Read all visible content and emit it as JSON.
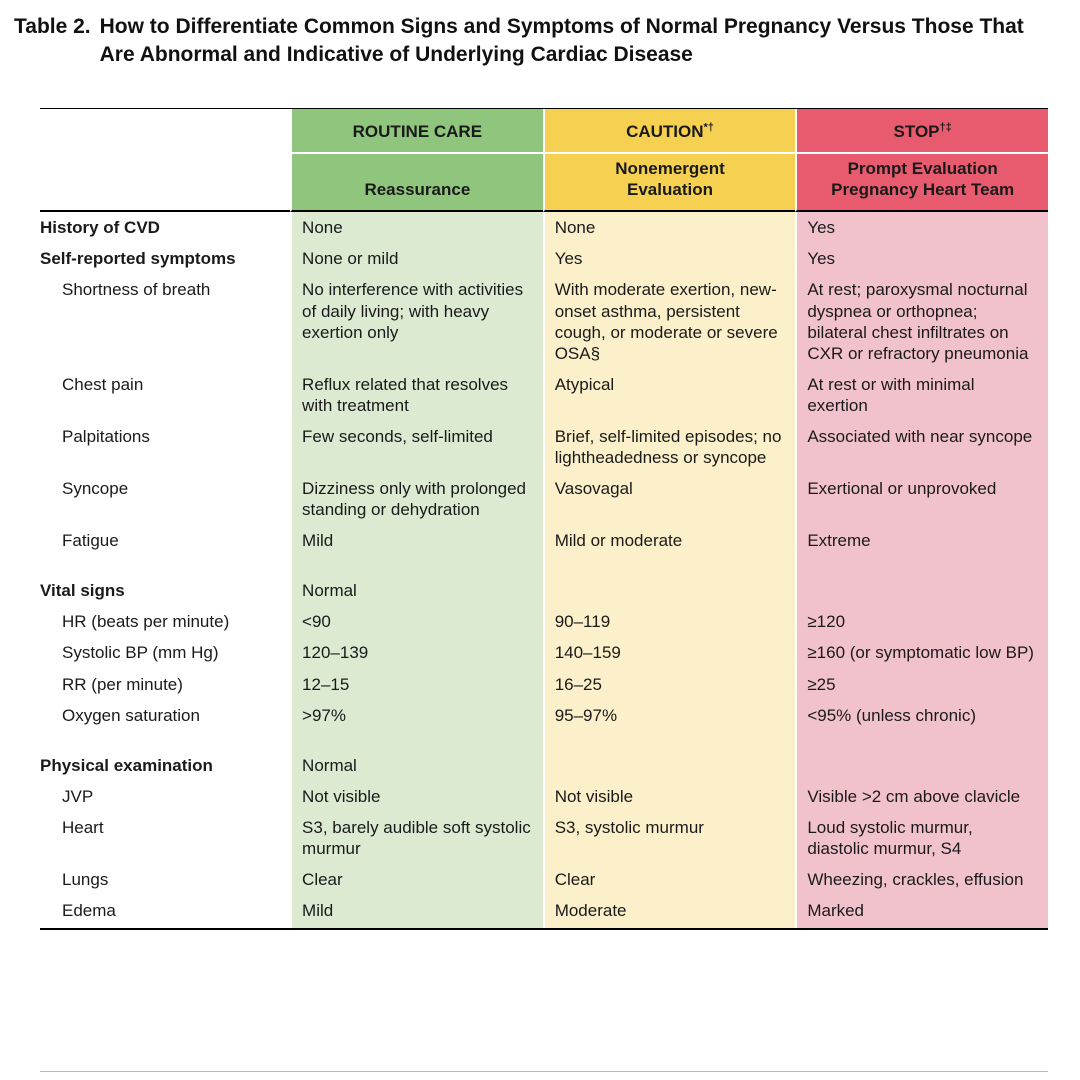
{
  "title": {
    "label": "Table 2.",
    "text": "How to Differentiate Common Signs and Symptoms of Normal Pregnancy Versus Those That Are Abnormal and Indicative of Underlying Cardiac Disease"
  },
  "table": {
    "columns": [
      {
        "header": "ROUTINE CARE",
        "header_sup": "",
        "subheader": "Reassurance",
        "header_color": "#8fc57d",
        "body_color": "#dcead2"
      },
      {
        "header": "CAUTION",
        "header_sup": "*†",
        "subheader": "Nonemergent\nEvaluation",
        "header_color": "#f6d051",
        "body_color": "#fbf0c9"
      },
      {
        "header": "STOP",
        "header_sup": "†‡",
        "subheader": "Prompt Evaluation\nPregnancy Heart Team",
        "header_color": "#e85a6e",
        "body_color": "#f2c2cc"
      }
    ],
    "rows": [
      {
        "label": "History of CVD",
        "bold": true,
        "cells": [
          "None",
          "None",
          "Yes"
        ]
      },
      {
        "label": "Self-reported symptoms",
        "bold": true,
        "cells": [
          "None or mild",
          "Yes",
          "Yes"
        ]
      },
      {
        "label": "Shortness of breath",
        "indent": true,
        "cells": [
          "No interference with activities of daily living; with heavy exertion only",
          "With moderate exertion, new-onset asthma, persistent cough, or moderate or severe OSA§",
          "At rest; paroxysmal nocturnal dyspnea or orthopnea; bilateral chest infiltrates on CXR or refractory pneumonia"
        ]
      },
      {
        "label": "Chest pain",
        "indent": true,
        "cells": [
          "Reflux related that resolves with treatment",
          "Atypical",
          "At rest or with minimal exertion"
        ]
      },
      {
        "label": "Palpitations",
        "indent": true,
        "cells": [
          "Few seconds, self-limited",
          "Brief, self-limited episodes; no lightheadedness or syncope",
          "Associated with near syncope"
        ]
      },
      {
        "label": "Syncope",
        "indent": true,
        "cells": [
          "Dizziness only with prolonged standing or dehydration",
          "Vasovagal",
          "Exertional or unprovoked"
        ]
      },
      {
        "label": "Fatigue",
        "indent": true,
        "cells": [
          "Mild",
          "Mild or moderate",
          "Extreme"
        ]
      },
      {
        "label": "Vital signs",
        "bold": true,
        "gap": true,
        "cells": [
          "Normal",
          "",
          ""
        ]
      },
      {
        "label": "HR (beats per minute)",
        "indent": true,
        "cells": [
          "<90",
          "90–119",
          "≥120"
        ]
      },
      {
        "label": "Systolic BP (mm Hg)",
        "indent": true,
        "cells": [
          "120–139",
          "140–159",
          "≥160 (or symptomatic low BP)"
        ]
      },
      {
        "label": "RR (per minute)",
        "indent": true,
        "cells": [
          "12–15",
          "16–25",
          "≥25"
        ]
      },
      {
        "label": "Oxygen saturation",
        "indent": true,
        "cells": [
          ">97%",
          "95–97%",
          "<95% (unless chronic)"
        ]
      },
      {
        "label": "Physical examination",
        "bold": true,
        "gap": true,
        "cells": [
          "Normal",
          "",
          ""
        ]
      },
      {
        "label": "JVP",
        "indent": true,
        "cells": [
          "Not visible",
          "Not visible",
          "Visible >2 cm above clavicle"
        ]
      },
      {
        "label": "Heart",
        "indent": true,
        "cells": [
          "S3, barely audible soft systolic murmur",
          "S3, systolic murmur",
          "Loud systolic murmur, diastolic murmur, S4"
        ]
      },
      {
        "label": "Lungs",
        "indent": true,
        "cells": [
          "Clear",
          "Clear",
          "Wheezing, crackles, effusion"
        ]
      },
      {
        "label": "Edema",
        "indent": true,
        "cells": [
          "Mild",
          "Moderate",
          "Marked"
        ]
      }
    ]
  }
}
